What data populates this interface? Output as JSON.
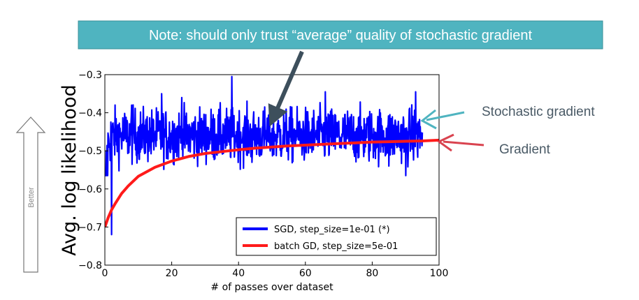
{
  "note": {
    "text": "Note: should only trust “average” quality of stochastic gradient"
  },
  "better_label": "Better",
  "annotations": {
    "stochastic": "Stochastic gradient",
    "gradient": "Gradient"
  },
  "colors": {
    "sgd": "#0000ff",
    "batch": "#ff1a1a",
    "note_bg": "#4fb4c0",
    "arrow_stochastic": "#4fb4c0",
    "arrow_gradient": "#d9434f",
    "arrow_note": "#3d4f5c"
  },
  "chart_data": {
    "type": "line",
    "title": "",
    "xlabel": "# of passes over dataset",
    "ylabel": "Avg. log likelihood",
    "xlim": [
      0,
      100
    ],
    "ylim": [
      -0.8,
      -0.3
    ],
    "xticks": [
      0,
      20,
      40,
      60,
      80,
      100
    ],
    "xtick_labels": [
      "0",
      "20",
      "40",
      "60",
      "80",
      "100"
    ],
    "yticks": [
      -0.8,
      -0.7,
      -0.6,
      -0.5,
      -0.4,
      -0.3
    ],
    "ytick_labels": [
      "−0.8",
      "−0.7",
      "−0.6",
      "−0.5",
      "−0.4",
      "−0.3"
    ],
    "grid": false,
    "legend_position": "lower-right",
    "series": [
      {
        "name": "SGD, step_size=1e-01 (*)",
        "kind": "noisy",
        "x_range": [
          0,
          95
        ],
        "mean_start": -0.74,
        "mean_plateau": -0.46,
        "spread": 0.035,
        "max": -0.305,
        "min": -0.565,
        "spikes": [
          [
            2,
            -0.72
          ],
          [
            8,
            -0.38
          ],
          [
            17,
            -0.35
          ],
          [
            23,
            -0.36
          ],
          [
            38,
            -0.305
          ],
          [
            44,
            -0.53
          ],
          [
            66,
            -0.345
          ],
          [
            85,
            -0.54
          ],
          [
            90,
            -0.565
          ],
          [
            93,
            -0.345
          ]
        ]
      },
      {
        "name": "batch GD, step_size=5e-01",
        "kind": "smooth",
        "x": [
          0,
          1,
          2,
          3,
          5,
          7,
          10,
          15,
          20,
          25,
          30,
          35,
          40,
          45,
          50,
          55,
          60,
          65,
          70,
          75,
          80,
          85,
          90,
          95,
          100
        ],
        "y": [
          -0.7,
          -0.675,
          -0.655,
          -0.64,
          -0.612,
          -0.592,
          -0.567,
          -0.543,
          -0.527,
          -0.515,
          -0.507,
          -0.502,
          -0.497,
          -0.493,
          -0.49,
          -0.487,
          -0.485,
          -0.483,
          -0.481,
          -0.479,
          -0.477,
          -0.476,
          -0.475,
          -0.474,
          -0.472
        ]
      }
    ]
  }
}
